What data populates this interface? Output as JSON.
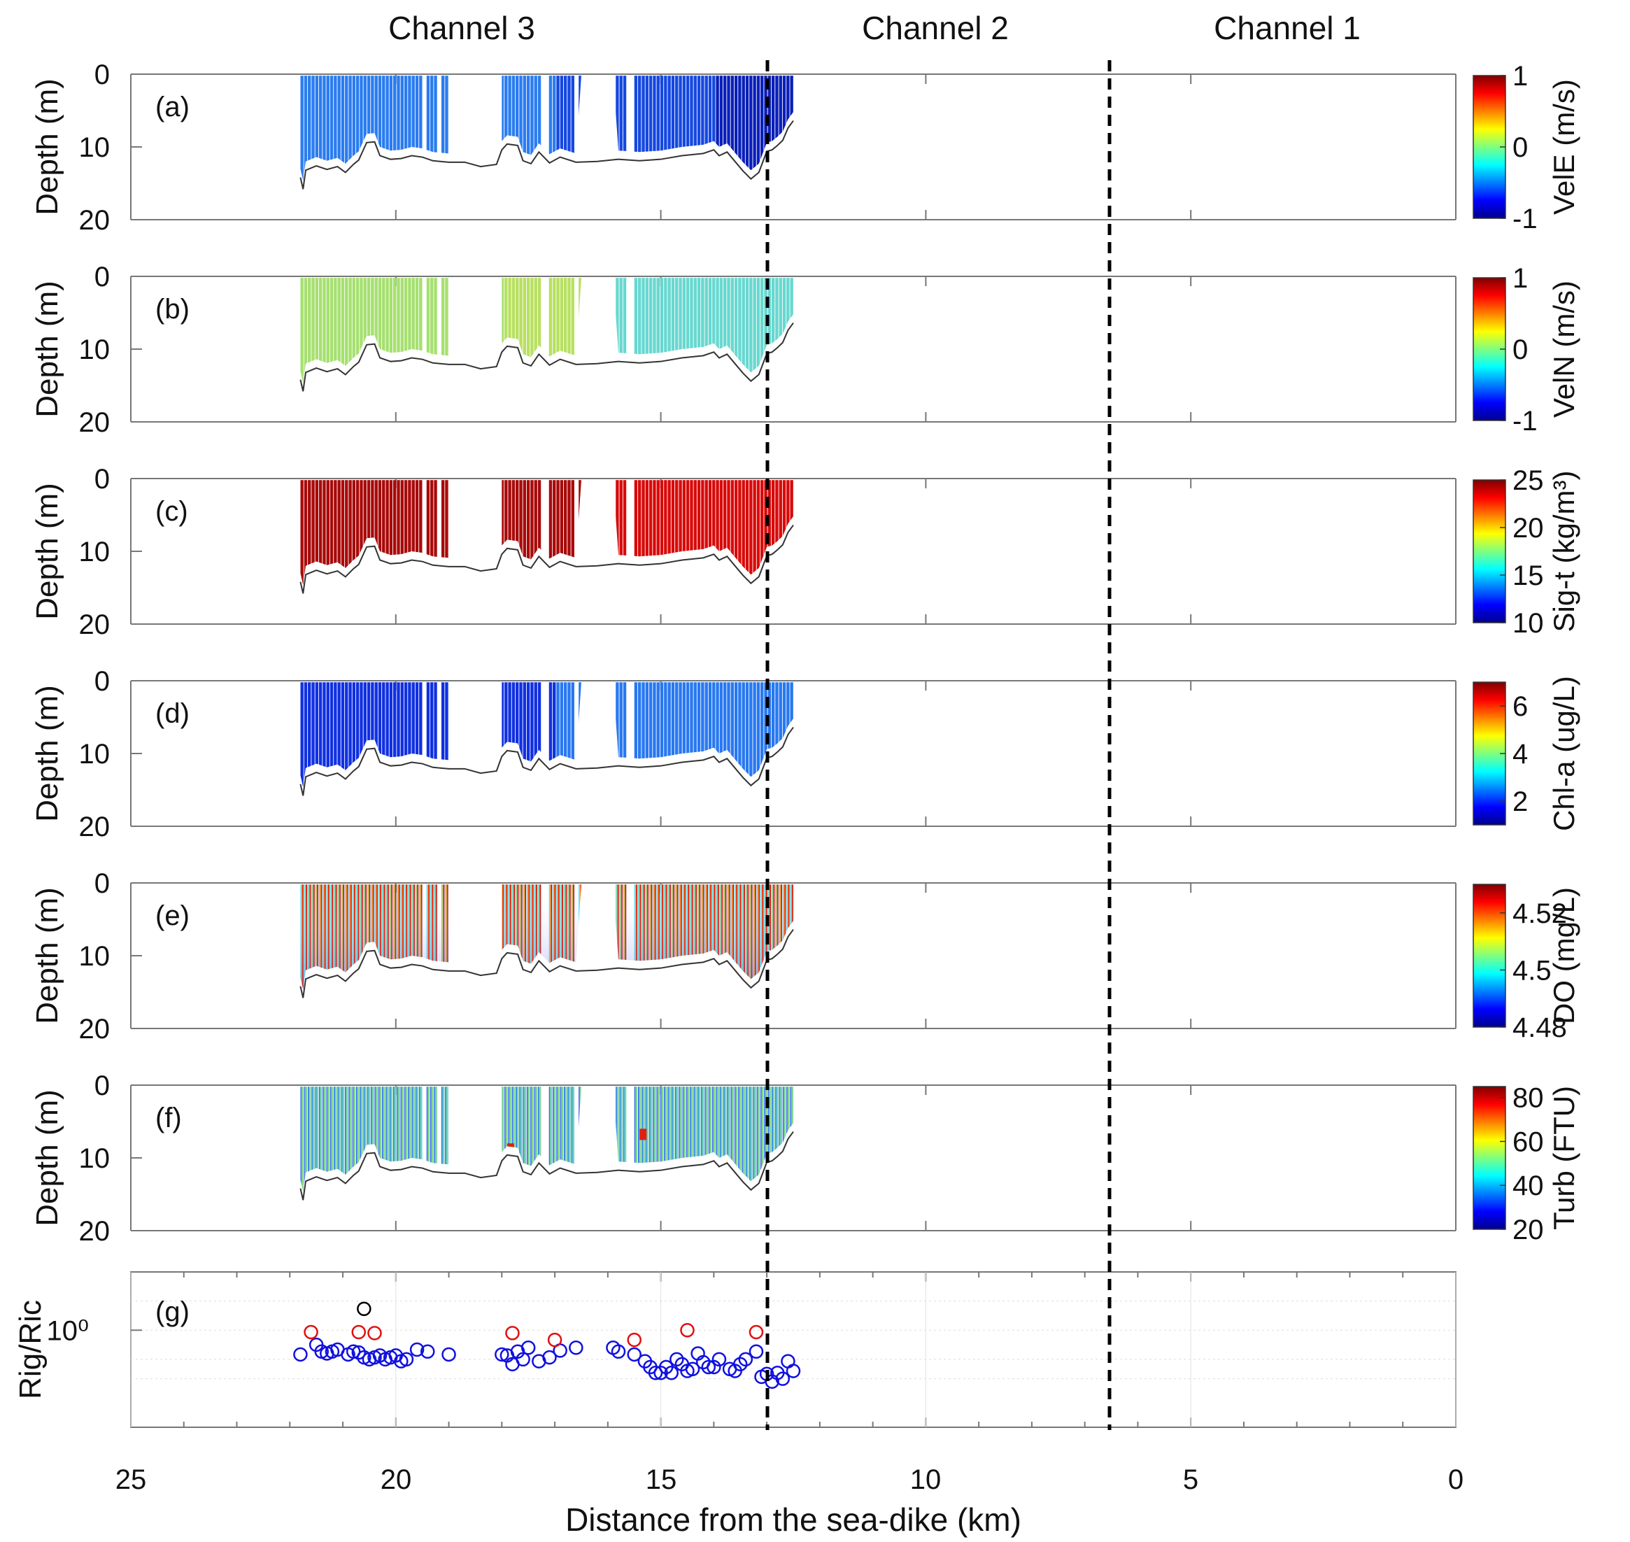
{
  "figure": {
    "channel_labels": [
      "Channel 3",
      "Channel 2",
      "Channel 1"
    ],
    "xlabel": "Distance from the sea-dike (km)",
    "x_ticks": [
      "25",
      "20",
      "15",
      "10",
      "5",
      "0"
    ],
    "colors": {
      "axis": "#777777",
      "bottom": "#333333",
      "divider": "#000000",
      "blue_marker": "#1010e0",
      "red_marker": "#e01010",
      "black_marker": "#000000"
    }
  },
  "chart_data": [
    {
      "type": "heatmap",
      "panel": "(a)",
      "ylabel": "Depth (m)",
      "xlim": [
        25,
        0
      ],
      "ylim": [
        20,
        0
      ],
      "y_ticks": [
        "0",
        "10",
        "20"
      ],
      "colorbar_label": "VelE (m/s)",
      "clim": [
        -1,
        1
      ],
      "colorbar_ticks": [
        "1",
        "0",
        "-1"
      ],
      "fill_profile": "blue-dominant"
    },
    {
      "type": "heatmap",
      "panel": "(b)",
      "ylabel": "Depth (m)",
      "xlim": [
        25,
        0
      ],
      "ylim": [
        20,
        0
      ],
      "y_ticks": [
        "0",
        "10",
        "20"
      ],
      "colorbar_label": "VelN (m/s)",
      "clim": [
        -1,
        1
      ],
      "colorbar_ticks": [
        "1",
        "0",
        "-1"
      ],
      "fill_profile": "green-cyan"
    },
    {
      "type": "heatmap",
      "panel": "(c)",
      "ylabel": "Depth (m)",
      "xlim": [
        25,
        0
      ],
      "ylim": [
        20,
        0
      ],
      "y_ticks": [
        "0",
        "10",
        "20"
      ],
      "colorbar_label": "Sig-t (kg/m³)",
      "clim": [
        10,
        25
      ],
      "colorbar_ticks": [
        "25",
        "20",
        "15",
        "10"
      ],
      "fill_profile": "dark-red"
    },
    {
      "type": "heatmap",
      "panel": "(d)",
      "ylabel": "Depth (m)",
      "xlim": [
        25,
        0
      ],
      "ylim": [
        20,
        0
      ],
      "y_ticks": [
        "0",
        "10",
        "20"
      ],
      "colorbar_label": "Chl-a (ug/L)",
      "clim": [
        1,
        7
      ],
      "colorbar_ticks": [
        "6",
        "4",
        "2"
      ],
      "fill_profile": "blue"
    },
    {
      "type": "heatmap",
      "panel": "(e)",
      "ylabel": "Depth (m)",
      "xlim": [
        25,
        0
      ],
      "ylim": [
        20,
        0
      ],
      "y_ticks": [
        "0",
        "10",
        "20"
      ],
      "colorbar_label": "DO (mg/L)",
      "clim": [
        4.48,
        4.53
      ],
      "colorbar_ticks": [
        "4.52",
        "4.5",
        "4.48"
      ],
      "fill_profile": "gradient-do"
    },
    {
      "type": "heatmap",
      "panel": "(f)",
      "ylabel": "Depth (m)",
      "xlim": [
        25,
        0
      ],
      "ylim": [
        20,
        0
      ],
      "y_ticks": [
        "0",
        "10",
        "20"
      ],
      "colorbar_label": "Turb (FTU)",
      "clim": [
        20,
        85
      ],
      "colorbar_ticks": [
        "80",
        "60",
        "40",
        "20"
      ],
      "fill_profile": "turb"
    },
    {
      "type": "scatter",
      "panel": "(g)",
      "ylabel": "Rig/Ric",
      "xlim": [
        25,
        0
      ],
      "yscale": "log",
      "ylim_log10": [
        -1,
        0.6
      ],
      "y_tick_label": "10⁰",
      "series": [
        {
          "name": "blue",
          "x": [
            21.8,
            21.5,
            21.4,
            21.3,
            21.2,
            21.1,
            20.9,
            20.8,
            20.7,
            20.6,
            20.5,
            20.4,
            20.3,
            20.2,
            20.1,
            20.0,
            19.9,
            19.8,
            19.6,
            19.4,
            19.0,
            18.0,
            17.9,
            17.8,
            17.7,
            17.6,
            17.5,
            17.3,
            17.1,
            16.9,
            16.6,
            15.9,
            15.8,
            15.5,
            15.3,
            15.2,
            15.1,
            15.0,
            14.9,
            14.8,
            14.7,
            14.6,
            14.5,
            14.4,
            14.3,
            14.2,
            14.1,
            14.0,
            13.9,
            13.7,
            13.6,
            13.5,
            13.4,
            13.2,
            13.1,
            13.0,
            12.9,
            12.8,
            12.7,
            12.6,
            12.5
          ],
          "y": [
            -0.25,
            -0.15,
            -0.22,
            -0.24,
            -0.22,
            -0.2,
            -0.25,
            -0.22,
            -0.23,
            -0.28,
            -0.3,
            -0.28,
            -0.26,
            -0.3,
            -0.28,
            -0.26,
            -0.32,
            -0.3,
            -0.2,
            -0.22,
            -0.25,
            -0.25,
            -0.26,
            -0.35,
            -0.22,
            -0.3,
            -0.18,
            -0.32,
            -0.28,
            -0.21,
            -0.18,
            -0.18,
            -0.22,
            -0.25,
            -0.32,
            -0.38,
            -0.44,
            -0.44,
            -0.38,
            -0.44,
            -0.3,
            -0.35,
            -0.42,
            -0.4,
            -0.24,
            -0.33,
            -0.38,
            -0.38,
            -0.3,
            -0.4,
            -0.42,
            -0.35,
            -0.3,
            -0.22,
            -0.48,
            -0.45,
            -0.53,
            -0.44,
            -0.5,
            -0.32,
            -0.42
          ]
        },
        {
          "name": "red",
          "x": [
            21.6,
            20.7,
            20.4,
            17.8,
            17.0,
            15.5,
            14.5,
            13.2
          ],
          "y": [
            -0.02,
            -0.02,
            -0.03,
            -0.03,
            -0.1,
            -0.1,
            0.0,
            -0.02
          ]
        },
        {
          "name": "black",
          "x": [
            20.6
          ],
          "y": [
            0.22
          ]
        }
      ]
    }
  ]
}
